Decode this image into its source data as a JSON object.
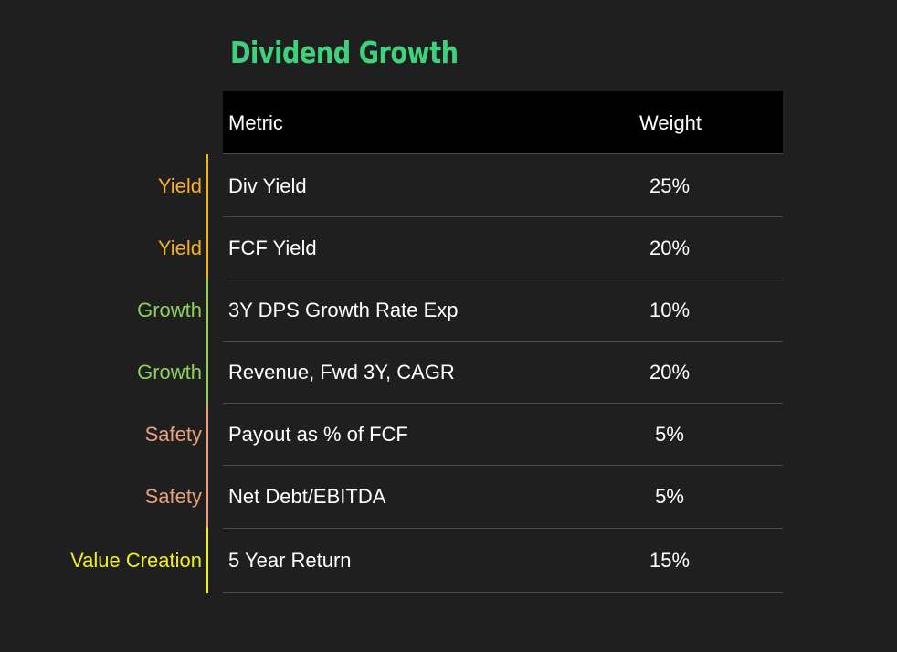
{
  "title": "Dividend Growth",
  "colors": {
    "background": "#1f1f1f",
    "title": "#3ed27c",
    "yield": "#f4b120",
    "growth": "#8ed15a",
    "safety": "#e8a07c",
    "value_creation": "#f1ef1c"
  },
  "table": {
    "headers": {
      "metric": "Metric",
      "weight": "Weight"
    },
    "rows": [
      {
        "category": "Yield",
        "metric": "Div Yield",
        "weight": "25%"
      },
      {
        "category": "Yield",
        "metric": "FCF Yield",
        "weight": "20%"
      },
      {
        "category": "Growth",
        "metric": "3Y DPS Growth Rate Exp",
        "weight": "10%"
      },
      {
        "category": "Growth",
        "metric": "Revenue, Fwd 3Y, CAGR",
        "weight": "20%"
      },
      {
        "category": "Safety",
        "metric": "Payout as % of FCF",
        "weight": "5%"
      },
      {
        "category": "Safety",
        "metric": "Net Debt/EBITDA",
        "weight": "5%"
      },
      {
        "category": "Value Creation",
        "metric": "5 Year Return",
        "weight": "15%"
      }
    ]
  }
}
